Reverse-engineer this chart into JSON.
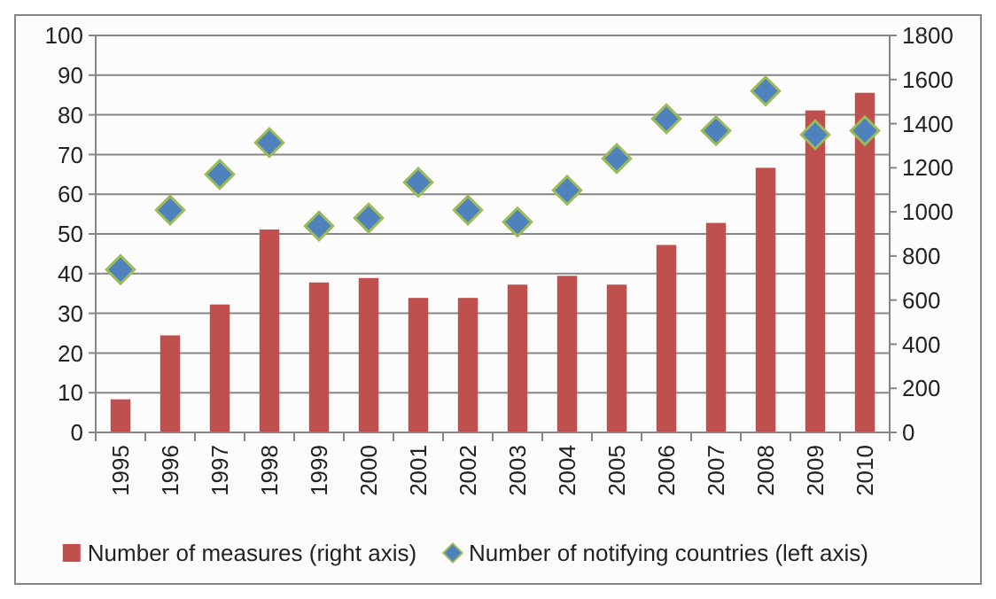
{
  "chart_data": {
    "type": "bar",
    "categories": [
      "1995",
      "1996",
      "1997",
      "1998",
      "1999",
      "2000",
      "2001",
      "2002",
      "2003",
      "2004",
      "2005",
      "2006",
      "2007",
      "2008",
      "2009",
      "2010"
    ],
    "series": [
      {
        "name": "Number of measures (right axis)",
        "type": "bar",
        "axis": "y2",
        "color": "#c0504d",
        "values": [
          150,
          440,
          580,
          920,
          680,
          700,
          610,
          610,
          670,
          710,
          670,
          850,
          950,
          1200,
          1460,
          1540
        ]
      },
      {
        "name": "Number of notifying countries (left axis)",
        "type": "scatter",
        "axis": "y",
        "marker": "diamond",
        "color": "#4f81bd",
        "values": [
          41,
          56,
          65,
          73,
          52,
          54,
          63,
          56,
          53,
          61,
          69,
          79,
          76,
          86,
          75,
          76
        ]
      }
    ],
    "ylim": [
      0,
      100
    ],
    "yticks": [
      0,
      10,
      20,
      30,
      40,
      50,
      60,
      70,
      80,
      90,
      100
    ],
    "y2lim": [
      0,
      1800
    ],
    "y2ticks": [
      0,
      200,
      400,
      600,
      800,
      1000,
      1200,
      1400,
      1600,
      1800
    ],
    "grid": "y",
    "legend": "bottom"
  }
}
